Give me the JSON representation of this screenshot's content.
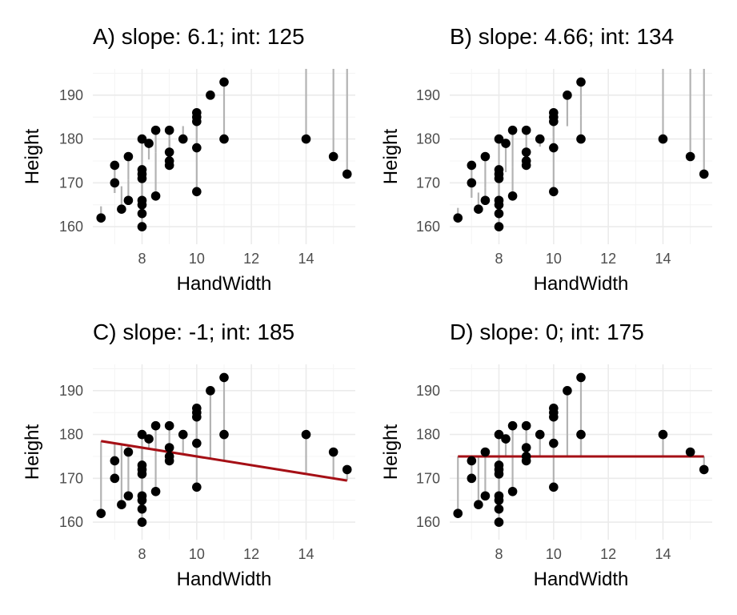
{
  "chart_data": [
    {
      "type": "scatter",
      "title": "A) slope:  6.1; int: 125",
      "xlabel": "HandWidth",
      "ylabel": "Height",
      "x": [
        6.5,
        7,
        7,
        7.25,
        7.5,
        7.5,
        8,
        8,
        8,
        8,
        8,
        8,
        8,
        8,
        8.25,
        8.5,
        8.5,
        9,
        9,
        9,
        9,
        9.5,
        10,
        10,
        10,
        10,
        10,
        10.5,
        11,
        11,
        14,
        15,
        15.5
      ],
      "y": [
        162,
        174,
        170,
        164,
        176,
        166,
        180,
        173,
        171,
        165,
        163,
        160,
        172,
        166,
        179,
        182,
        167,
        182,
        177,
        174,
        175,
        180,
        186,
        184,
        185,
        178,
        168,
        190,
        193,
        180,
        180,
        176,
        172
      ],
      "line": {
        "slope": 6.1,
        "intercept": 125
      },
      "xlim": [
        6.2,
        15.8
      ],
      "ylim": [
        156,
        196
      ],
      "xticks": [
        8,
        10,
        12,
        14
      ],
      "yticks": [
        160,
        170,
        180,
        190
      ],
      "grid": true
    },
    {
      "type": "scatter",
      "title": "B) slope:  4.66; int: 134",
      "xlabel": "HandWidth",
      "ylabel": "Height",
      "x": [
        6.5,
        7,
        7,
        7.25,
        7.5,
        7.5,
        8,
        8,
        8,
        8,
        8,
        8,
        8,
        8,
        8.25,
        8.5,
        8.5,
        9,
        9,
        9,
        9,
        9.5,
        10,
        10,
        10,
        10,
        10,
        10.5,
        11,
        11,
        14,
        15,
        15.5
      ],
      "y": [
        162,
        174,
        170,
        164,
        176,
        166,
        180,
        173,
        171,
        165,
        163,
        160,
        172,
        166,
        179,
        182,
        167,
        182,
        177,
        174,
        175,
        180,
        186,
        184,
        185,
        178,
        168,
        190,
        193,
        180,
        180,
        176,
        172
      ],
      "line": {
        "slope": 4.66,
        "intercept": 134
      },
      "xlim": [
        6.2,
        15.8
      ],
      "ylim": [
        156,
        196
      ],
      "xticks": [
        8,
        10,
        12,
        14
      ],
      "yticks": [
        160,
        170,
        180,
        190
      ],
      "grid": true
    },
    {
      "type": "scatter",
      "title": "C) slope:  -1; int: 185",
      "xlabel": "HandWidth",
      "ylabel": "Height",
      "x": [
        6.5,
        7,
        7,
        7.25,
        7.5,
        7.5,
        8,
        8,
        8,
        8,
        8,
        8,
        8,
        8,
        8.25,
        8.5,
        8.5,
        9,
        9,
        9,
        9,
        9.5,
        10,
        10,
        10,
        10,
        10,
        10.5,
        11,
        11,
        14,
        15,
        15.5
      ],
      "y": [
        162,
        174,
        170,
        164,
        176,
        166,
        180,
        173,
        171,
        165,
        163,
        160,
        172,
        166,
        179,
        182,
        167,
        182,
        177,
        174,
        175,
        180,
        186,
        184,
        185,
        178,
        168,
        190,
        193,
        180,
        180,
        176,
        172
      ],
      "line": {
        "slope": -1,
        "intercept": 185,
        "color": "#a50f15",
        "show": true
      },
      "xlim": [
        6.2,
        15.8
      ],
      "ylim": [
        156,
        196
      ],
      "xticks": [
        8,
        10,
        12,
        14
      ],
      "yticks": [
        160,
        170,
        180,
        190
      ],
      "grid": true
    },
    {
      "type": "scatter",
      "title": "D) slope:  0; int: 175",
      "xlabel": "HandWidth",
      "ylabel": "Height",
      "x": [
        6.5,
        7,
        7,
        7.25,
        7.5,
        7.5,
        8,
        8,
        8,
        8,
        8,
        8,
        8,
        8,
        8.25,
        8.5,
        8.5,
        9,
        9,
        9,
        9,
        9.5,
        10,
        10,
        10,
        10,
        10,
        10.5,
        11,
        11,
        14,
        15,
        15.5
      ],
      "y": [
        162,
        174,
        170,
        164,
        176,
        166,
        180,
        173,
        171,
        165,
        163,
        160,
        172,
        166,
        179,
        182,
        167,
        182,
        177,
        174,
        175,
        180,
        186,
        184,
        185,
        178,
        168,
        190,
        193,
        180,
        180,
        176,
        172
      ],
      "line": {
        "slope": 0,
        "intercept": 175,
        "color": "#a50f15",
        "show": true
      },
      "xlim": [
        6.2,
        15.8
      ],
      "ylim": [
        156,
        196
      ],
      "xticks": [
        8,
        10,
        12,
        14
      ],
      "yticks": [
        160,
        170,
        180,
        190
      ],
      "grid": true
    }
  ],
  "colors": {
    "point": "#000000",
    "residual": "#b3b3b3",
    "fit_line": "#a50f15",
    "grid": "#ebebeb",
    "tick_text": "#4d4d4d"
  }
}
